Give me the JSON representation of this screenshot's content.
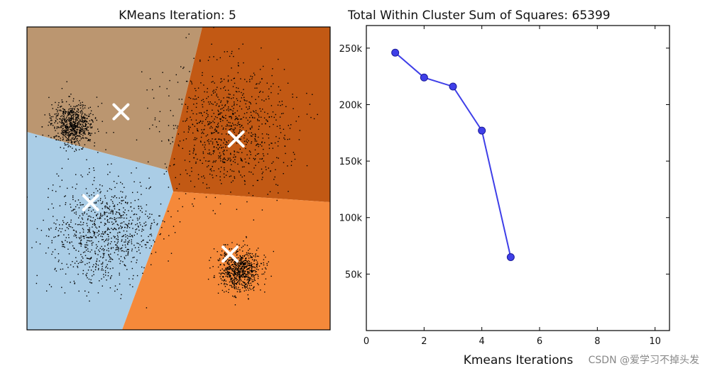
{
  "watermark": "CSDN @爱学习不掉头发",
  "chart_data": [
    {
      "type": "scatter",
      "title": "KMeans Iteration: 5",
      "xlabel": "",
      "ylabel": "",
      "grid": false,
      "region_colors": [
        "#bb9670",
        "#c25914",
        "#aacde6",
        "#f5893a"
      ],
      "point_color": "#000000",
      "centroid_color": "#ffffff",
      "clusters": [
        {
          "name": "top-left",
          "center": [
            0.15,
            0.32
          ],
          "spread": 0.035
        },
        {
          "name": "top-right",
          "center": [
            0.66,
            0.33
          ],
          "spread": 0.1
        },
        {
          "name": "bottom-left",
          "center": [
            0.25,
            0.68
          ],
          "spread": 0.09
        },
        {
          "name": "bottom-right",
          "center": [
            0.7,
            0.8
          ],
          "spread": 0.035
        }
      ],
      "centroids": [
        [
          0.31,
          0.28
        ],
        [
          0.69,
          0.37
        ],
        [
          0.21,
          0.58
        ],
        [
          0.67,
          0.75
        ]
      ]
    },
    {
      "type": "line",
      "title": "Total Within Cluster Sum of Squares: 65399",
      "xlabel": "Kmeans Iterations",
      "ylabel": "",
      "grid": false,
      "xlim": [
        0,
        10.5
      ],
      "ylim": [
        0,
        270000
      ],
      "xticks": [
        0,
        2,
        4,
        6,
        8,
        10
      ],
      "yticks": [
        50000,
        100000,
        150000,
        200000,
        250000
      ],
      "ytick_labels": [
        "50k",
        "100k",
        "150k",
        "200k",
        "250k"
      ],
      "series": [
        {
          "color": "#3f3fe8",
          "x": [
            1,
            2,
            3,
            4,
            5
          ],
          "y": [
            246000,
            224000,
            216000,
            177000,
            65000
          ]
        }
      ]
    }
  ]
}
